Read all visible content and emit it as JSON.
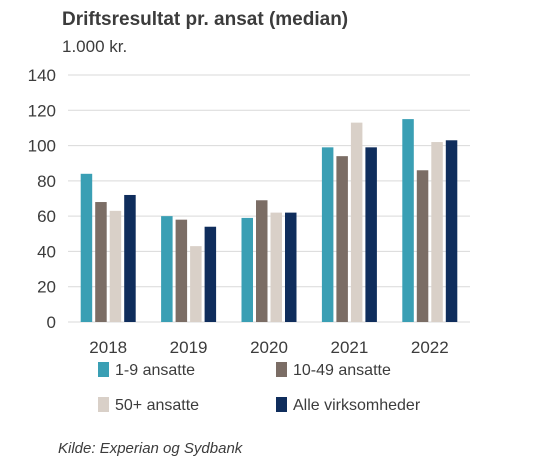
{
  "chart_data": {
    "type": "bar",
    "title": "Driftsresultat pr. ansat (median)",
    "subtitle": "1.000 kr.",
    "categories": [
      "2018",
      "2019",
      "2020",
      "2021",
      "2022"
    ],
    "series": [
      {
        "name": "1-9 ansatte",
        "color": "#3a9fb4",
        "values": [
          84,
          60,
          59,
          99,
          115
        ]
      },
      {
        "name": "10-49 ansatte",
        "color": "#7b6d65",
        "values": [
          68,
          58,
          69,
          94,
          86
        ]
      },
      {
        "name": "50+ ansatte",
        "color": "#d9d0c8",
        "values": [
          63,
          43,
          62,
          113,
          102
        ]
      },
      {
        "name": "Alle virksomheder",
        "color": "#0f2d5c",
        "values": [
          72,
          54,
          62,
          99,
          103
        ]
      }
    ],
    "yticks": [
      "0",
      "20",
      "40",
      "60",
      "80",
      "100",
      "120",
      "140"
    ],
    "ylim": [
      0,
      140
    ],
    "grid": true,
    "legend": "bottom"
  },
  "source": "Kilde: Experian og Sydbank"
}
